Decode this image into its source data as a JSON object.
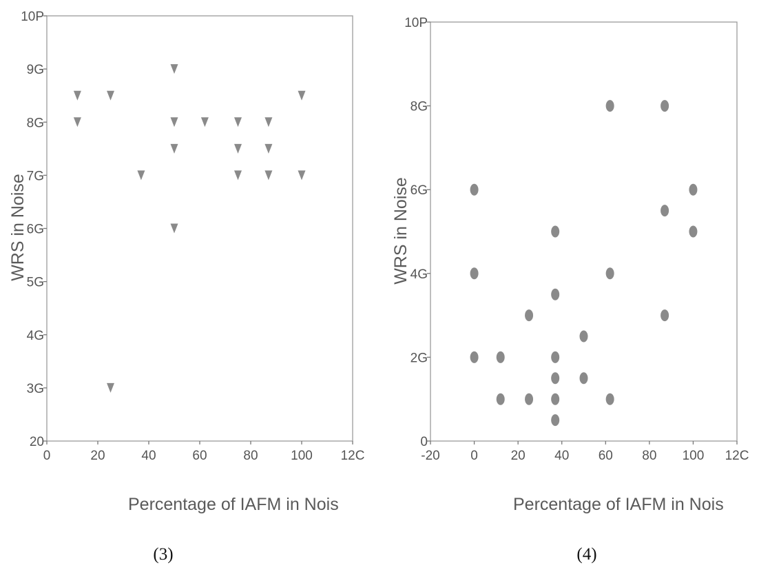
{
  "chart_data": [
    {
      "type": "scatter",
      "caption": "(3)",
      "xlabel": "Percentage of IAFM in Nois",
      "ylabel": "WRS in Noise",
      "xlim": [
        0,
        120
      ],
      "ylim": [
        20,
        100
      ],
      "x_ticks": [
        "0",
        "20",
        "40",
        "60",
        "80",
        "100",
        "12C"
      ],
      "y_ticks": [
        "20",
        "3G",
        "4G",
        "5G",
        "6G",
        "7G",
        "8G",
        "9G",
        "10P"
      ],
      "grid": false,
      "marker": "triangle-down",
      "marker_color": "#8a8a8a",
      "points": [
        {
          "x": 12,
          "y": 85
        },
        {
          "x": 12,
          "y": 80
        },
        {
          "x": 25,
          "y": 85
        },
        {
          "x": 25,
          "y": 30
        },
        {
          "x": 37,
          "y": 70
        },
        {
          "x": 50,
          "y": 90
        },
        {
          "x": 50,
          "y": 80
        },
        {
          "x": 50,
          "y": 75
        },
        {
          "x": 50,
          "y": 60
        },
        {
          "x": 62,
          "y": 80
        },
        {
          "x": 75,
          "y": 80
        },
        {
          "x": 75,
          "y": 75
        },
        {
          "x": 75,
          "y": 70
        },
        {
          "x": 87,
          "y": 80
        },
        {
          "x": 87,
          "y": 75
        },
        {
          "x": 87,
          "y": 70
        },
        {
          "x": 100,
          "y": 85
        },
        {
          "x": 100,
          "y": 70
        }
      ]
    },
    {
      "type": "scatter",
      "caption": "(4)",
      "xlabel": "Percentage of IAFM in Nois",
      "ylabel": "WRS in Noise",
      "xlim": [
        -20,
        120
      ],
      "ylim": [
        0,
        100
      ],
      "x_ticks": [
        "-20",
        "0",
        "20",
        "40",
        "60",
        "80",
        "100",
        "12C"
      ],
      "y_ticks": [
        "0",
        "2G",
        "4G",
        "6G",
        "8G",
        "10P"
      ],
      "grid": false,
      "marker": "circle",
      "marker_color": "#8a8a8a",
      "points": [
        {
          "x": 0,
          "y": 60
        },
        {
          "x": 0,
          "y": 40
        },
        {
          "x": 0,
          "y": 20
        },
        {
          "x": 12,
          "y": 20
        },
        {
          "x": 12,
          "y": 10
        },
        {
          "x": 25,
          "y": 30
        },
        {
          "x": 25,
          "y": 10
        },
        {
          "x": 37,
          "y": 50
        },
        {
          "x": 37,
          "y": 35
        },
        {
          "x": 37,
          "y": 20
        },
        {
          "x": 37,
          "y": 15
        },
        {
          "x": 37,
          "y": 10
        },
        {
          "x": 37,
          "y": 5
        },
        {
          "x": 50,
          "y": 25
        },
        {
          "x": 50,
          "y": 15
        },
        {
          "x": 62,
          "y": 80
        },
        {
          "x": 62,
          "y": 40
        },
        {
          "x": 62,
          "y": 10
        },
        {
          "x": 87,
          "y": 80
        },
        {
          "x": 87,
          "y": 55
        },
        {
          "x": 87,
          "y": 30
        },
        {
          "x": 100,
          "y": 60
        },
        {
          "x": 100,
          "y": 50
        }
      ]
    }
  ]
}
